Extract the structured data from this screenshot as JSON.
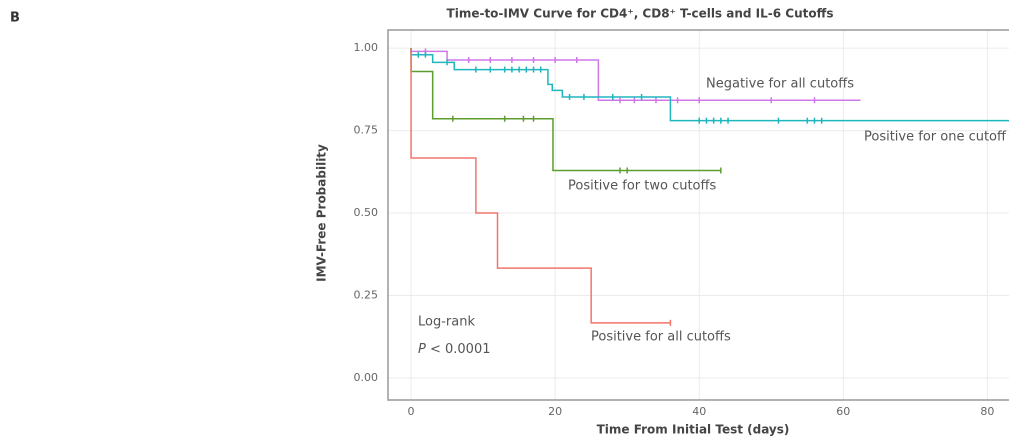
{
  "panel_label": "B",
  "chart_data": {
    "type": "step",
    "title": "Time-to-IMV Curve for CD4⁺, CD8⁺ T-cells and IL-6 Cutoffs",
    "x_label": "Time From Initial Test (days)",
    "y_label": "IMV-Free Probability",
    "annotations": [
      "Log-rank",
      "P",
      " < 0.0001"
    ],
    "xlim": [
      -3.2,
      83
    ],
    "ylim": [
      -0.067,
      1.055
    ],
    "xticks": [
      0,
      20,
      40,
      60,
      80
    ],
    "yticks": [
      {
        "value": 0,
        "label": "0.00"
      },
      {
        "value": 0.25,
        "label": "0.25"
      },
      {
        "value": 0.5,
        "label": "0.50"
      },
      {
        "value": 0.75,
        "label": "0.75"
      },
      {
        "value": 1,
        "label": "1.00"
      }
    ],
    "grid": true,
    "series": [
      {
        "name": "Negative for all cutoffs",
        "color": "#cf78e8",
        "x": [
          0,
          0,
          5,
          5,
          26,
          26,
          62.4
        ],
        "values": [
          1,
          0.99,
          0.99,
          0.964,
          0.964,
          0.842,
          0.842
        ],
        "censor_x": [
          2,
          8,
          11,
          14,
          17,
          20,
          23,
          29,
          31,
          34,
          37,
          40,
          50,
          56
        ],
        "censor_values": [
          0.99,
          0.964,
          0.964,
          0.964,
          0.964,
          0.964,
          0.964,
          0.842,
          0.842,
          0.842,
          0.842,
          0.842,
          0.842,
          0.842
        ]
      },
      {
        "name": "Positive for one cutoff",
        "color": "#1fb6bd",
        "x": [
          0,
          0,
          3,
          3,
          6,
          6,
          19,
          19,
          19.6,
          19.6,
          21,
          21,
          36,
          36,
          83
        ],
        "values": [
          1,
          0.98,
          0.98,
          0.957,
          0.957,
          0.935,
          0.935,
          0.89,
          0.89,
          0.872,
          0.872,
          0.852,
          0.852,
          0.78,
          0.78
        ],
        "censor_x": [
          1,
          2,
          5,
          9,
          11,
          13,
          14,
          15,
          16,
          17,
          18,
          22,
          24,
          28,
          32,
          40,
          41,
          42,
          43,
          44,
          51,
          55,
          56,
          57
        ],
        "censor_values": [
          0.98,
          0.98,
          0.957,
          0.935,
          0.935,
          0.935,
          0.935,
          0.935,
          0.935,
          0.935,
          0.935,
          0.852,
          0.852,
          0.852,
          0.852,
          0.78,
          0.78,
          0.78,
          0.78,
          0.78,
          0.78,
          0.78,
          0.78,
          0.78
        ]
      },
      {
        "name": "Positive for two cutoffs",
        "color": "#5c9e2e",
        "x": [
          0,
          0,
          3,
          3,
          19.7,
          19.7,
          43
        ],
        "values": [
          1,
          0.929,
          0.929,
          0.786,
          0.786,
          0.629,
          0.629
        ],
        "censor_x": [
          5.8,
          13,
          15.6,
          17,
          29,
          30,
          43
        ],
        "censor_values": [
          0.786,
          0.786,
          0.786,
          0.786,
          0.629,
          0.629,
          0.629
        ]
      },
      {
        "name": "Positive for all cutoffs",
        "color": "#f0766c",
        "x": [
          0,
          0,
          9,
          9,
          12,
          12,
          25,
          25,
          36
        ],
        "values": [
          1,
          0.667,
          0.667,
          0.5,
          0.5,
          0.333,
          0.333,
          0.167,
          0.167
        ],
        "censor_x": [
          36
        ],
        "censor_values": [
          0.167
        ]
      }
    ]
  }
}
